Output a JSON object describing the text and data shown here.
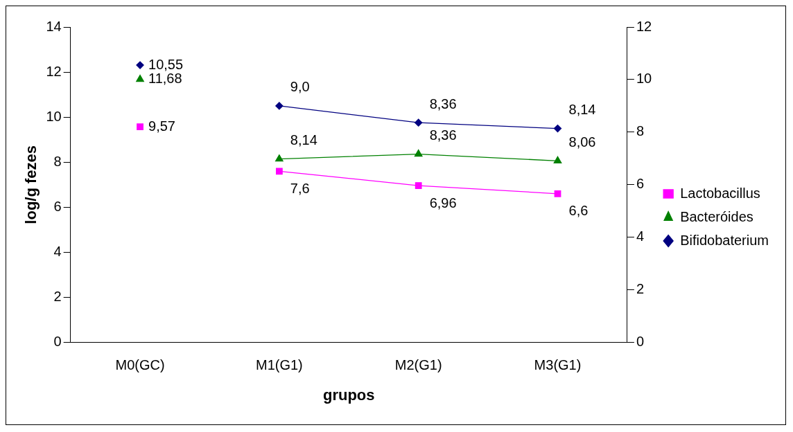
{
  "chart_data": {
    "type": "line",
    "xlabel": "grupos",
    "ylabel": "log/g fezes",
    "categories": [
      "M0(GC)",
      "M1(G1)",
      "M2(G1)",
      "M3(G1)"
    ],
    "ylim": [
      0,
      14
    ],
    "yticks": [
      0,
      2,
      4,
      6,
      8,
      10,
      12,
      14
    ],
    "y2lim": [
      0,
      12
    ],
    "y2ticks": [
      0,
      2,
      4,
      6,
      8,
      10,
      12
    ],
    "grid": false,
    "legend": "right",
    "series": [
      {
        "name": "Lactobacillus",
        "color": "#ff00ff",
        "marker": "square",
        "values": [
          null,
          7.6,
          6.96,
          6.6
        ],
        "value_labels": [
          null,
          "7,6",
          "6,96",
          "6,6"
        ]
      },
      {
        "name": "Bacteróides",
        "color": "#008000",
        "marker": "triangle",
        "values": [
          null,
          8.14,
          8.36,
          8.06
        ],
        "value_labels": [
          null,
          "8,14",
          "8,36",
          "8,06"
        ]
      },
      {
        "name": "Bifidobaterium",
        "color": "#000080",
        "marker": "diamond",
        "axis": "y2",
        "values": [
          null,
          9.0,
          8.36,
          8.14
        ],
        "value_labels": [
          null,
          "9,0",
          "8,36",
          "8,14"
        ]
      },
      {
        "type": "scatter",
        "color": "#ff00ff",
        "marker": "square",
        "x": [
          "M0(GC)"
        ],
        "values": [
          9.57
        ],
        "value_labels": [
          "9,57"
        ]
      },
      {
        "type": "scatter",
        "color": "#008000",
        "marker": "triangle",
        "x": [
          "M0(GC)"
        ],
        "values": [
          11.68
        ],
        "value_labels": [
          "11,68"
        ]
      },
      {
        "type": "scatter",
        "color": "#000080",
        "marker": "diamond",
        "axis": "y2",
        "x": [
          "M0(GC)"
        ],
        "values": [
          10.55
        ],
        "value_labels": [
          "10,55"
        ]
      }
    ]
  }
}
